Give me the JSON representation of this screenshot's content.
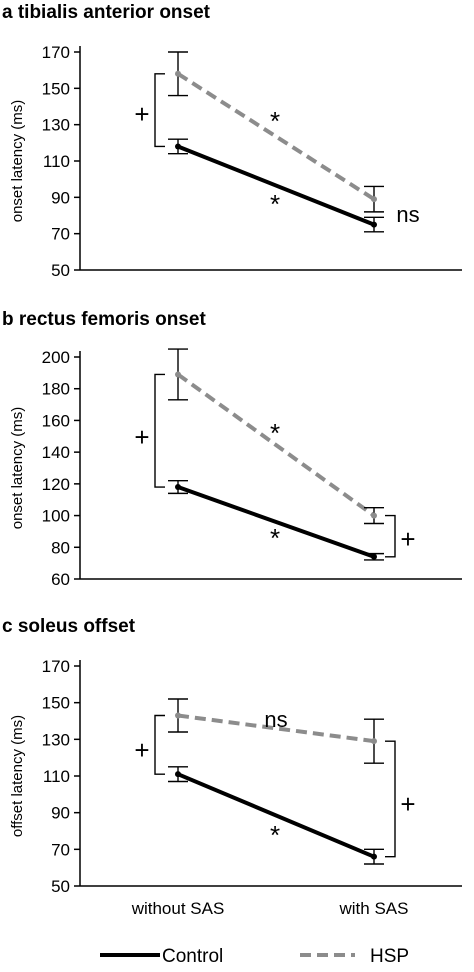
{
  "chart_data": [
    {
      "type": "line",
      "title": "a tibialis anterior onset",
      "ylabel": "onset latency (ms)",
      "xlabel": "",
      "categories": [
        "without SAS",
        "with SAS"
      ],
      "ylim": [
        50,
        170
      ],
      "yticks": [
        50,
        70,
        90,
        110,
        130,
        150,
        170
      ],
      "grid": false,
      "series": [
        {
          "name": "Control",
          "values": [
            118,
            75
          ],
          "error_low": [
            114,
            71
          ],
          "error_high": [
            122,
            79
          ],
          "color": "#000000",
          "dash": false
        },
        {
          "name": "HSP",
          "values": [
            158,
            89
          ],
          "error_low": [
            146,
            82
          ],
          "error_high": [
            170,
            96
          ],
          "color": "#8c8c8c",
          "dash": true
        }
      ],
      "annotations": [
        {
          "text": "*",
          "target": "HSP slope"
        },
        {
          "text": "*",
          "target": "Control slope"
        },
        {
          "text": "ns",
          "target": "with SAS group difference"
        },
        {
          "text": "+",
          "target": "without SAS group difference",
          "bracket": [
            118,
            158
          ]
        }
      ]
    },
    {
      "type": "line",
      "title": "b rectus femoris onset",
      "ylabel": "onset latency (ms)",
      "xlabel": "",
      "categories": [
        "without SAS",
        "with SAS"
      ],
      "ylim": [
        60,
        200
      ],
      "yticks": [
        60,
        80,
        100,
        120,
        140,
        160,
        180,
        200
      ],
      "grid": false,
      "series": [
        {
          "name": "Control",
          "values": [
            118,
            74
          ],
          "error_low": [
            114,
            72
          ],
          "error_high": [
            122,
            76
          ],
          "color": "#000000",
          "dash": false
        },
        {
          "name": "HSP",
          "values": [
            189,
            100
          ],
          "error_low": [
            173,
            95
          ],
          "error_high": [
            205,
            105
          ],
          "color": "#8c8c8c",
          "dash": true
        }
      ],
      "annotations": [
        {
          "text": "*",
          "target": "HSP slope"
        },
        {
          "text": "*",
          "target": "Control slope"
        },
        {
          "text": "+",
          "target": "without SAS group difference",
          "bracket": [
            118,
            189
          ]
        },
        {
          "text": "+",
          "target": "with SAS group difference",
          "bracket": [
            74,
            100
          ]
        }
      ]
    },
    {
      "type": "line",
      "title": "c soleus offset",
      "ylabel": "offset latency (ms)",
      "xlabel": "",
      "categories": [
        "without SAS",
        "with SAS"
      ],
      "ylim": [
        50,
        170
      ],
      "yticks": [
        50,
        70,
        90,
        110,
        130,
        150,
        170
      ],
      "grid": false,
      "series": [
        {
          "name": "Control",
          "values": [
            111,
            66
          ],
          "error_low": [
            107,
            62
          ],
          "error_high": [
            115,
            70
          ],
          "color": "#000000",
          "dash": false
        },
        {
          "name": "HSP",
          "values": [
            143,
            129
          ],
          "error_low": [
            134,
            117
          ],
          "error_high": [
            152,
            141
          ],
          "color": "#8c8c8c",
          "dash": true
        }
      ],
      "annotations": [
        {
          "text": "ns",
          "target": "HSP slope"
        },
        {
          "text": "*",
          "target": "Control slope"
        },
        {
          "text": "+",
          "target": "without SAS group difference",
          "bracket": [
            111,
            143
          ]
        },
        {
          "text": "+",
          "target": "with SAS group difference",
          "bracket": [
            66,
            129
          ]
        }
      ]
    }
  ],
  "legend": {
    "placement": "bottom",
    "items": [
      {
        "label": "Control",
        "color": "#000000",
        "dash": false
      },
      {
        "label": "HSP",
        "color": "#8c8c8c",
        "dash": true
      }
    ]
  }
}
